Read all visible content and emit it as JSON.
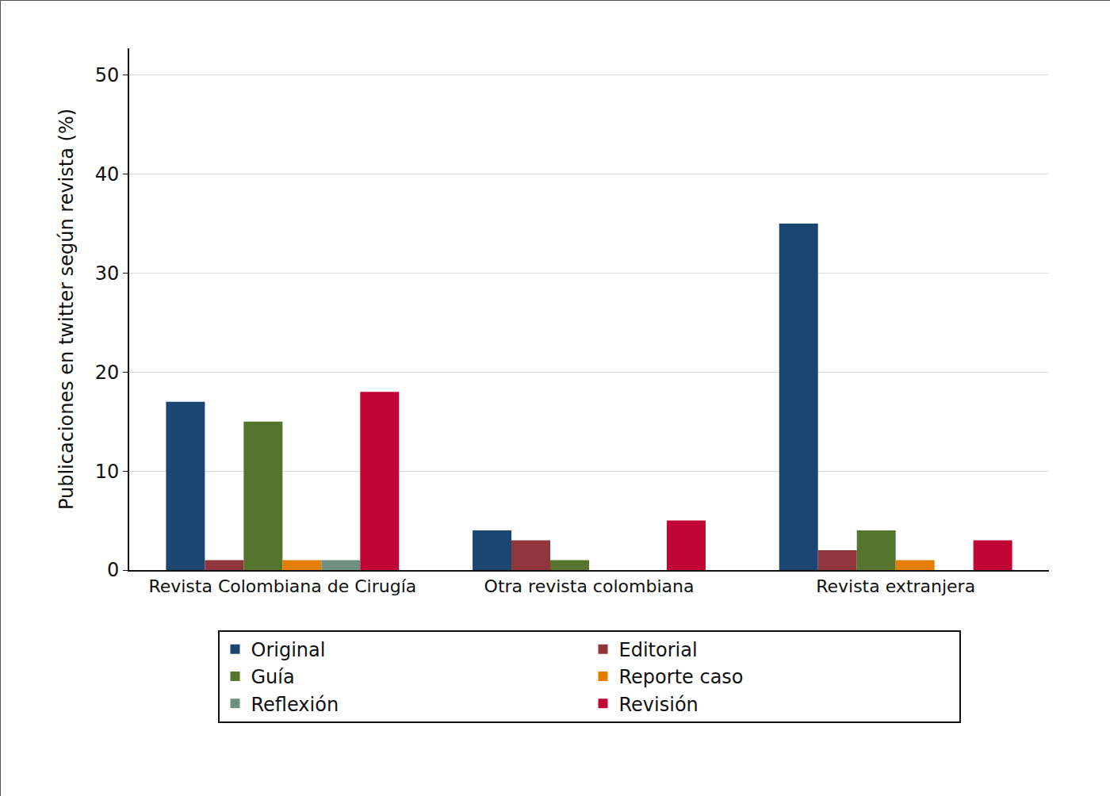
{
  "chart_data": {
    "type": "bar",
    "y_label": "Publicaciones en twitter según revista (%)",
    "categories": [
      "Revista Colombiana de Cirugía",
      "Otra revista colombiana",
      "Revista extranjera"
    ],
    "series": [
      {
        "name": "Original",
        "color": "#1c4672",
        "values": [
          17,
          4,
          35
        ]
      },
      {
        "name": "Editorial",
        "color": "#90353b",
        "values": [
          1,
          3,
          2
        ]
      },
      {
        "name": "Guía",
        "color": "#55752f",
        "values": [
          15,
          1,
          4
        ]
      },
      {
        "name": "Reporte caso",
        "color": "#e37e00",
        "values": [
          1,
          0,
          1
        ]
      },
      {
        "name": "Reflexión",
        "color": "#6f8f80",
        "values": [
          1,
          0,
          0
        ]
      },
      {
        "name": "Revisión",
        "color": "#c10534",
        "values": [
          18,
          5,
          3
        ]
      }
    ],
    "ylim": [
      0,
      52.7
    ],
    "yticks": [
      0,
      10,
      20,
      30,
      40,
      50
    ],
    "grid": true,
    "legend": "bottom"
  }
}
